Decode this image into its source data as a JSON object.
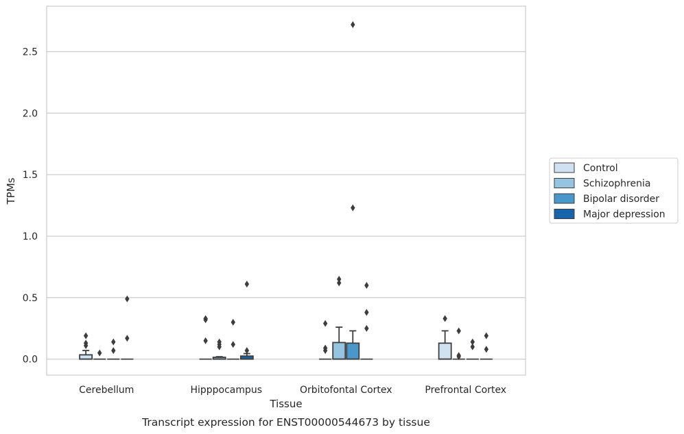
{
  "chart_data": {
    "type": "box",
    "title": "",
    "caption": "Transcript expression for ENST00000544673 by tissue",
    "xlabel": "Tissue",
    "ylabel": "TPMs",
    "ylim": [
      -0.13,
      2.87
    ],
    "yticks": [
      "0.0",
      "0.5",
      "1.0",
      "1.5",
      "2.0",
      "2.5"
    ],
    "grid": true,
    "legend_position": "right",
    "categories": [
      "Cerebellum",
      "Hipppocampus",
      "Orbitofontal Cortex",
      "Prefrontal Cortex"
    ],
    "series": [
      {
        "name": "Control",
        "color": "#d0e1f2",
        "boxes": [
          {
            "q1": 0.0,
            "median": 0.0,
            "q3": 0.035,
            "whisker_low": 0.0,
            "whisker_high": 0.07,
            "outliers": [
              0.11,
              0.13,
              0.19
            ]
          },
          {
            "q1": 0.0,
            "median": 0.0,
            "q3": 0.0,
            "whisker_low": 0.0,
            "whisker_high": 0.0,
            "outliers": [
              0.15,
              0.32,
              0.33
            ]
          },
          {
            "q1": 0.0,
            "median": 0.0,
            "q3": 0.0,
            "whisker_low": 0.0,
            "whisker_high": 0.0,
            "outliers": [
              0.07,
              0.09,
              0.29
            ]
          },
          {
            "q1": 0.0,
            "median": 0.0,
            "q3": 0.13,
            "whisker_low": 0.0,
            "whisker_high": 0.23,
            "outliers": [
              0.33
            ]
          }
        ]
      },
      {
        "name": "Schizophrenia",
        "color": "#94c4df",
        "boxes": [
          {
            "q1": 0.0,
            "median": 0.0,
            "q3": 0.0,
            "whisker_low": 0.0,
            "whisker_high": 0.0,
            "outliers": [
              0.05
            ]
          },
          {
            "q1": 0.0,
            "median": 0.0,
            "q3": 0.015,
            "whisker_low": 0.0,
            "whisker_high": 0.02,
            "outliers": [
              0.1,
              0.12,
              0.14
            ]
          },
          {
            "q1": 0.0,
            "median": 0.0,
            "q3": 0.135,
            "whisker_low": 0.0,
            "whisker_high": 0.26,
            "outliers": [
              0.62,
              0.65
            ]
          },
          {
            "q1": 0.0,
            "median": 0.0,
            "q3": 0.0,
            "whisker_low": 0.0,
            "whisker_high": 0.0,
            "outliers": [
              0.02,
              0.03,
              0.23
            ]
          }
        ]
      },
      {
        "name": "Bipolar disorder",
        "color": "#4a98c9",
        "boxes": [
          {
            "q1": 0.0,
            "median": 0.0,
            "q3": 0.0,
            "whisker_low": 0.0,
            "whisker_high": 0.0,
            "outliers": [
              0.07,
              0.14
            ]
          },
          {
            "q1": 0.0,
            "median": 0.0,
            "q3": 0.0,
            "whisker_low": 0.0,
            "whisker_high": 0.0,
            "outliers": [
              0.12,
              0.3
            ]
          },
          {
            "q1": 0.0,
            "median": 0.0,
            "q3": 0.13,
            "whisker_low": 0.0,
            "whisker_high": 0.23,
            "outliers": [
              1.23,
              2.72
            ]
          },
          {
            "q1": 0.0,
            "median": 0.0,
            "q3": 0.0,
            "whisker_low": 0.0,
            "whisker_high": 0.0,
            "outliers": [
              0.1,
              0.14
            ]
          }
        ]
      },
      {
        "name": "Major depression",
        "color": "#1764ab",
        "boxes": [
          {
            "q1": 0.0,
            "median": 0.0,
            "q3": 0.0,
            "whisker_low": 0.0,
            "whisker_high": 0.0,
            "outliers": [
              0.17,
              0.49
            ]
          },
          {
            "q1": 0.0,
            "median": 0.0,
            "q3": 0.025,
            "whisker_low": 0.0,
            "whisker_high": 0.045,
            "outliers": [
              0.07,
              0.61
            ]
          },
          {
            "q1": 0.0,
            "median": 0.0,
            "q3": 0.0,
            "whisker_low": 0.0,
            "whisker_high": 0.0,
            "outliers": [
              0.25,
              0.38,
              0.6
            ]
          },
          {
            "q1": 0.0,
            "median": 0.0,
            "q3": 0.0,
            "whisker_low": 0.0,
            "whisker_high": 0.0,
            "outliers": [
              0.08,
              0.19
            ]
          }
        ]
      }
    ]
  }
}
